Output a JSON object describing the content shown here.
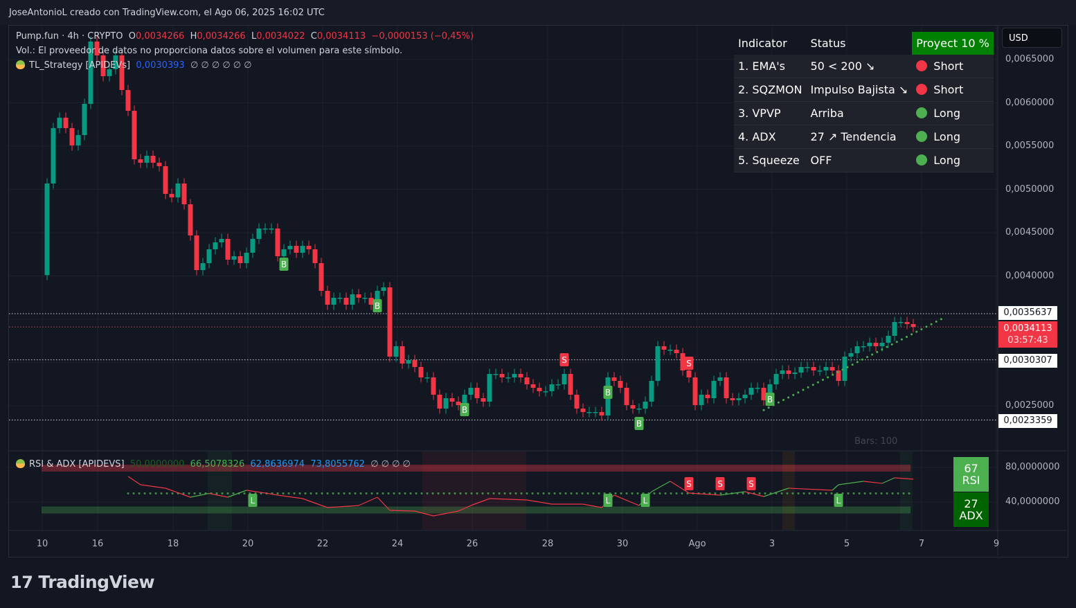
{
  "header": {
    "attribution": "JoseAntonioL creado con TradingView.com, el Ago 06, 2025 16:02 UTC"
  },
  "legend": {
    "symbol": "Pump.fun · 4h · CRYPTO",
    "o_label": "O",
    "o": "0,0034266",
    "h_label": "H",
    "h": "0,0034266",
    "l_label": "L",
    "l": "0,0034022",
    "c_label": "C",
    "c": "0,0034113",
    "change": "−0,0000153 (−0,45%)",
    "volume_note": "Vol.: El proveedor de datos no proporciona datos sobre el volumen para este símbolo.",
    "strategy_name": "TL_Strategy [APIDEVs]",
    "strategy_value": "0,0030393",
    "strategy_nulls": "∅ ∅ ∅ ∅ ∅ ∅",
    "rsi_name": "RSI & ADX [APIDEVS]",
    "rsi_v1": "50,0000000",
    "rsi_v2": "66,5078326",
    "rsi_v3": "62,8636974",
    "rsi_v4": "73,8055762",
    "rsi_nulls": "∅ ∅ ∅ ∅"
  },
  "indicator_table": {
    "headers": [
      "Indicator",
      "Status",
      "Proyect 10 %"
    ],
    "rows": [
      {
        "indicator": "1. EMA's",
        "status": "50 < 200 ↘",
        "signal": "Short",
        "color": "#f23645"
      },
      {
        "indicator": "2. SQZMON",
        "status": "Impulso Bajista ↘",
        "signal": "Short",
        "color": "#f23645"
      },
      {
        "indicator": "3. VPVP",
        "status": "Arriba",
        "signal": "Long",
        "color": "#4caf50"
      },
      {
        "indicator": "4. ADX",
        "status": "27 ↗ Tendencia",
        "signal": "Long",
        "color": "#4caf50"
      },
      {
        "indicator": "5. Squeeze",
        "status": "OFF",
        "signal": "Long",
        "color": "#4caf50"
      }
    ]
  },
  "currency": "USD",
  "price_axis": [
    "0,0065000",
    "0,0060000",
    "0,0055000",
    "0,0050000",
    "0,0045000",
    "0,0040000",
    "0,0025000"
  ],
  "price_labels": {
    "level_high": "0,0035637",
    "current": "0,0034113",
    "countdown": "03:57:43",
    "level_mid": "0,0030307",
    "level_low": "0,0023359"
  },
  "bars_text": "Bars: 100",
  "rsi_axis": [
    "80,0000000",
    "40,0000000"
  ],
  "rsi_box": {
    "value": "67",
    "label": "RSI"
  },
  "adx_box": {
    "value": "27",
    "label": "ADX"
  },
  "time_axis": [
    "10",
    "16",
    "18",
    "20",
    "22",
    "24",
    "26",
    "28",
    "30",
    "Ago",
    "3",
    "5",
    "7",
    "9"
  ],
  "brand": "TradingView",
  "colors": {
    "up": "#089981",
    "down": "#f23645",
    "signal_green": "#4caf50",
    "proyect_green": "#008000"
  },
  "chart_data": {
    "type": "candlestick",
    "timeframe": "4h",
    "ylim": [
      0.0021,
      0.0068
    ],
    "first_open": 0.00401,
    "closes": [
      0.005068,
      0.005708,
      0.005828,
      0.005708,
      0.005508,
      0.005628,
      0.005988,
      0.006708,
      0.006548,
      0.006308,
      0.006388,
      0.006548,
      0.006148,
      0.005908,
      0.005348,
      0.005308,
      0.005388,
      0.005308,
      0.005268,
      0.004948,
      0.004908,
      0.005068,
      0.004828,
      0.004468,
      0.004068,
      0.004148,
      0.004308,
      0.004388,
      0.004428,
      0.004188,
      0.004228,
      0.004148,
      0.004268,
      0.004428,
      0.004548,
      0.004548,
      0.004548,
      0.004228,
      0.004308,
      0.004348,
      0.004268,
      0.004348,
      0.004308,
      0.004148,
      0.003828,
      0.003668,
      0.003748,
      0.003748,
      0.003668,
      0.003788,
      0.003748,
      0.003748,
      0.003668,
      0.003828,
      0.003868,
      0.003068,
      0.003188,
      0.002988,
      0.003028,
      0.002948,
      0.002828,
      0.002828,
      0.002628,
      0.002468,
      0.002588,
      0.002548,
      0.002508,
      0.002628,
      0.002708,
      0.002588,
      0.002548,
      0.002868,
      0.002868,
      0.002828,
      0.002828,
      0.002868,
      0.002828,
      0.002748,
      0.002708,
      0.002668,
      0.002668,
      0.002748,
      0.002748,
      0.002868,
      0.002628,
      0.002468,
      0.002428,
      0.002428,
      0.002428,
      0.002388,
      0.002828,
      0.002788,
      0.002708,
      0.002508,
      0.002468,
      0.002468,
      0.002548,
      0.002788,
      0.003188,
      0.003148,
      0.003148,
      0.003108,
      0.002908,
      0.002828,
      0.002508,
      0.002628,
      0.002588,
      0.002788,
      0.002828,
      0.002588,
      0.002564,
      0.002588,
      0.002628,
      0.002708,
      0.002708,
      0.002564,
      0.002748,
      0.002868,
      0.002908,
      0.002868,
      0.002884,
      0.002948,
      0.002948,
      0.002908,
      0.002908,
      0.002948,
      0.002908,
      0.002788,
      0.003068,
      0.003108,
      0.003188,
      0.003188,
      0.003228,
      0.003188,
      0.003228,
      0.003308,
      0.003468,
      0.003468,
      0.003444,
      0.0034113
    ],
    "horizontal_levels": [
      0.0035637,
      0.0030307,
      0.0023359
    ],
    "current_price": 0.0034113,
    "signals": [
      {
        "bar": 38,
        "type": "B"
      },
      {
        "bar": 53,
        "type": "B"
      },
      {
        "bar": 67,
        "type": "B"
      },
      {
        "bar": 83,
        "type": "S"
      },
      {
        "bar": 90,
        "type": "B"
      },
      {
        "bar": 95,
        "type": "B"
      },
      {
        "bar": 103,
        "type": "S"
      },
      {
        "bar": 116,
        "type": "B"
      }
    ],
    "trend_line": {
      "from": {
        "bar": 115,
        "price": 0.00245
      },
      "to": {
        "bar": 144,
        "price": 0.00352
      }
    },
    "rsi": {
      "ylim": [
        10,
        95
      ],
      "bands": {
        "upper": 80,
        "lower": 30,
        "mid": 50
      },
      "points": [
        [
          13,
          69.6
        ],
        [
          15,
          60
        ],
        [
          19,
          56
        ],
        [
          23,
          45.6
        ],
        [
          26,
          50
        ],
        [
          29,
          45.6
        ],
        [
          32,
          53.6
        ],
        [
          35,
          50.4
        ],
        [
          37,
          48
        ],
        [
          41,
          44
        ],
        [
          45,
          33.6
        ],
        [
          50,
          36
        ],
        [
          53,
          45.6
        ],
        [
          55,
          30.4
        ],
        [
          59,
          29.6
        ],
        [
          62,
          24
        ],
        [
          66,
          29.6
        ],
        [
          68,
          36
        ],
        [
          71,
          44
        ],
        [
          77,
          42.4
        ],
        [
          81,
          37.6
        ],
        [
          86,
          37.6
        ],
        [
          89,
          33.6
        ],
        [
          91,
          48
        ],
        [
          95,
          36
        ],
        [
          97,
          52
        ],
        [
          100,
          64
        ],
        [
          103,
          50.4
        ],
        [
          108,
          48
        ],
        [
          112,
          52
        ],
        [
          115,
          46.4
        ],
        [
          119,
          56
        ],
        [
          126,
          53.6
        ],
        [
          127,
          60
        ],
        [
          131,
          64
        ],
        [
          134,
          61.6
        ],
        [
          136,
          68
        ],
        [
          139,
          66.4
        ]
      ],
      "signals": [
        {
          "bar": 33,
          "type": "L"
        },
        {
          "bar": 90,
          "type": "L"
        },
        {
          "bar": 96,
          "type": "L"
        },
        {
          "bar": 103,
          "type": "S"
        },
        {
          "bar": 108,
          "type": "S"
        },
        {
          "bar": 113,
          "type": "S"
        },
        {
          "bar": 127,
          "type": "L"
        }
      ]
    }
  }
}
